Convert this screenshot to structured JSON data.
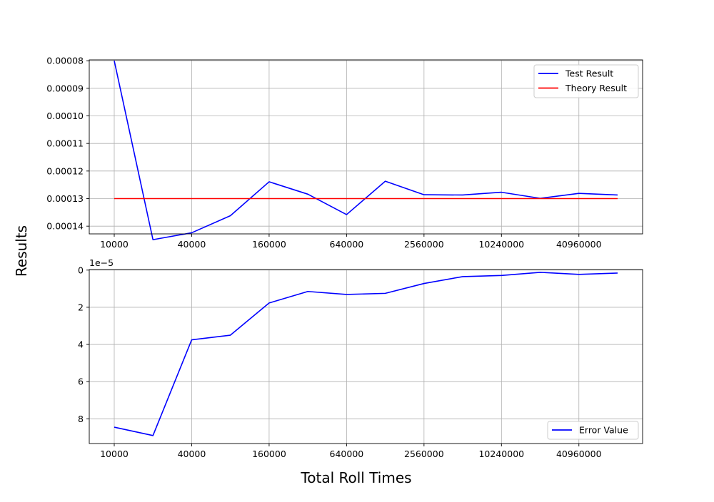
{
  "figure": {
    "ylabel": "Results",
    "xlabel": "Total Roll Times"
  },
  "chart_data": [
    {
      "type": "line",
      "x": [
        10000,
        20000,
        40000,
        80000,
        160000,
        320000,
        640000,
        1280000,
        2560000,
        5120000,
        10240000,
        20480000,
        40960000,
        81920000
      ],
      "x_scale": "log2",
      "x_tick_values": [
        10000,
        40000,
        160000,
        640000,
        2560000,
        10240000,
        40960000
      ],
      "x_tick_labels": [
        "10000",
        "40000",
        "160000",
        "640000",
        "2560000",
        "10240000",
        "40960000"
      ],
      "y_inverted": true,
      "ylim": [
        7.97e-05,
        0.0001428
      ],
      "y_tick_values": [
        8e-05,
        9e-05,
        0.0001,
        0.00011,
        0.00012,
        0.00013,
        0.00014
      ],
      "y_tick_labels": [
        "0.00008",
        "0.00009",
        "0.00010",
        "0.00011",
        "0.00012",
        "0.00013",
        "0.00014"
      ],
      "grid": true,
      "legend": "top-right",
      "series": [
        {
          "name": "Test Result",
          "color": "#0000ff",
          "values": [
            8e-05,
            0.0001449,
            0.0001424,
            0.0001362,
            0.0001239,
            0.0001284,
            0.0001358,
            0.0001237,
            0.0001286,
            0.0001287,
            0.0001277,
            0.0001299,
            0.0001281,
            0.0001287
          ]
        },
        {
          "name": "Theory Result",
          "color": "#ff0000",
          "values": [
            0.00013,
            0.00013,
            0.00013,
            0.00013,
            0.00013,
            0.00013,
            0.00013,
            0.00013,
            0.00013,
            0.00013,
            0.00013,
            0.00013,
            0.00013,
            0.00013
          ]
        }
      ]
    },
    {
      "type": "line",
      "x": [
        10000,
        20000,
        40000,
        80000,
        160000,
        320000,
        640000,
        1280000,
        2560000,
        5120000,
        10240000,
        20480000,
        40960000,
        81920000
      ],
      "x_scale": "log2",
      "x_tick_values": [
        10000,
        40000,
        160000,
        640000,
        2560000,
        10240000,
        40960000
      ],
      "x_tick_labels": [
        "10000",
        "40000",
        "160000",
        "640000",
        "2560000",
        "10240000",
        "40960000"
      ],
      "y_inverted": true,
      "ylim": [
        -0.03,
        9.33
      ],
      "y_tick_values": [
        0,
        2,
        4,
        6,
        8
      ],
      "y_tick_labels": [
        "0",
        "2",
        "4",
        "6",
        "8"
      ],
      "y_offset_label": "1e−5",
      "grid": true,
      "legend": "bottom-right",
      "series": [
        {
          "name": "Error Value",
          "color": "#0000ff",
          "values": [
            8.45,
            8.9,
            3.75,
            3.5,
            1.77,
            1.15,
            1.31,
            1.25,
            0.72,
            0.35,
            0.29,
            0.12,
            0.23,
            0.16
          ]
        }
      ]
    }
  ]
}
